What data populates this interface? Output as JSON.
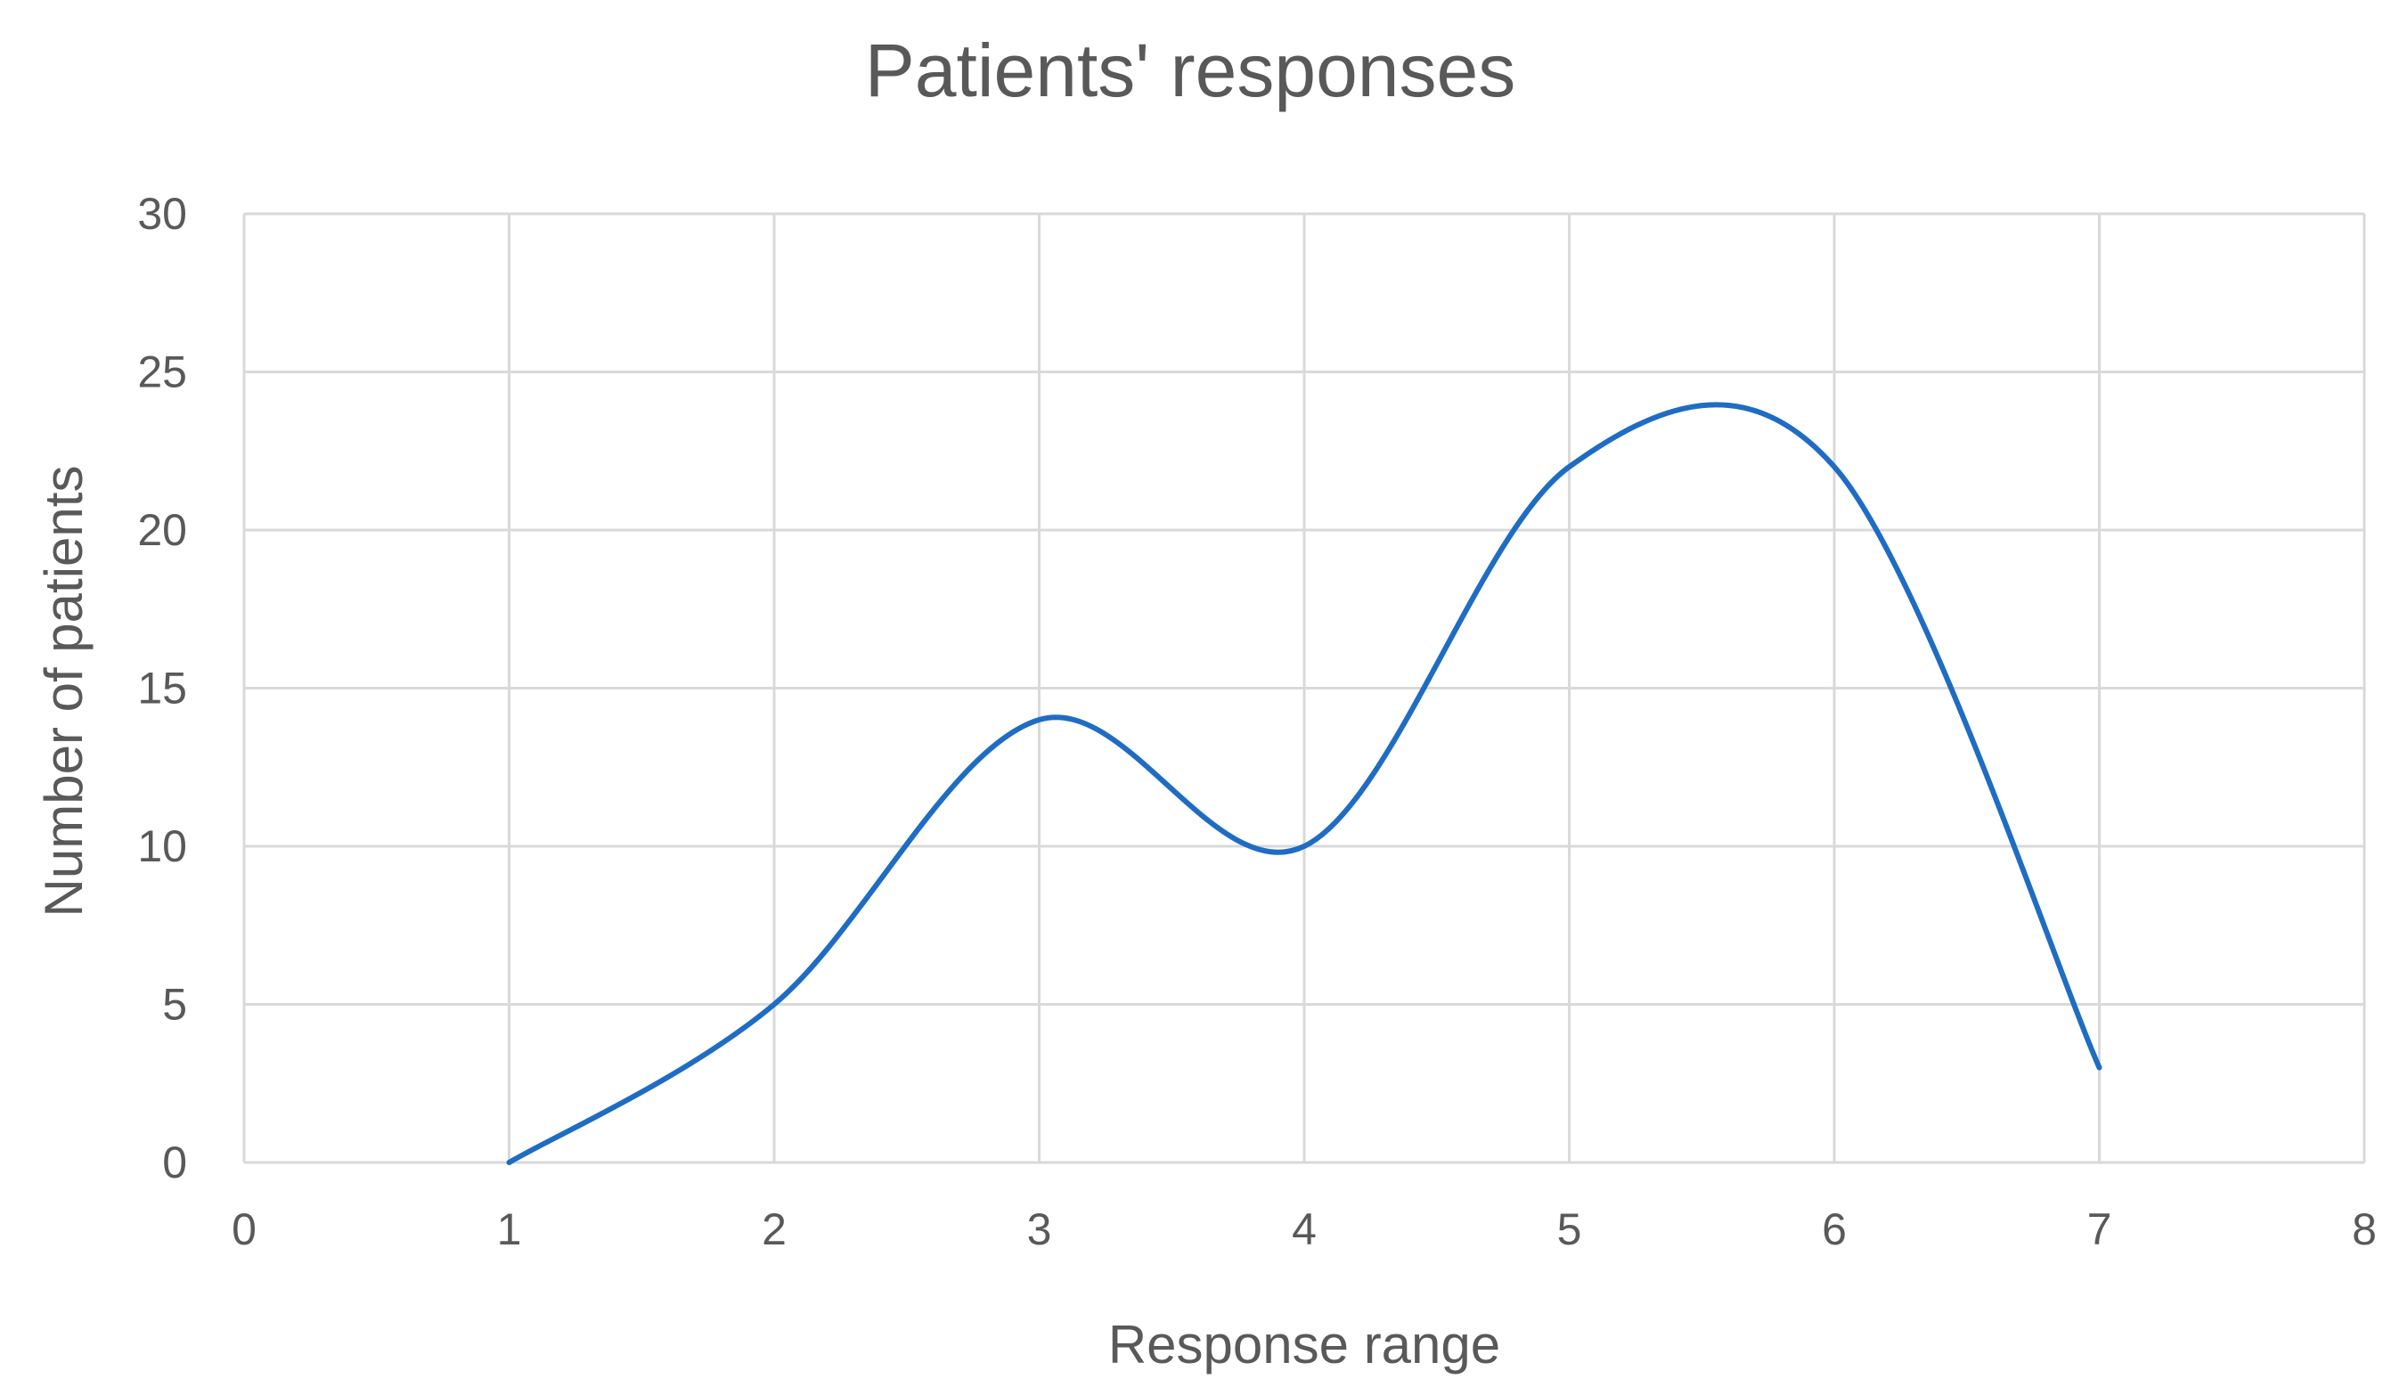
{
  "chart_data": {
    "type": "line",
    "smooth": true,
    "title": "Patients' responses",
    "xlabel": "Response range",
    "ylabel": "Number of patients",
    "xlim": [
      0,
      8
    ],
    "ylim": [
      0,
      30
    ],
    "xticks": [
      0,
      1,
      2,
      3,
      4,
      5,
      6,
      7,
      8
    ],
    "yticks": [
      0,
      5,
      10,
      15,
      20,
      25,
      30
    ],
    "grid": true,
    "legend": "none",
    "series": [
      {
        "color": "#1f6cc4",
        "points": [
          {
            "x": 1,
            "y": 0
          },
          {
            "x": 2,
            "y": 5
          },
          {
            "x": 3,
            "y": 14
          },
          {
            "x": 4,
            "y": 10
          },
          {
            "x": 5,
            "y": 22
          },
          {
            "x": 6,
            "y": 22
          },
          {
            "x": 7,
            "y": 3
          }
        ]
      }
    ]
  }
}
